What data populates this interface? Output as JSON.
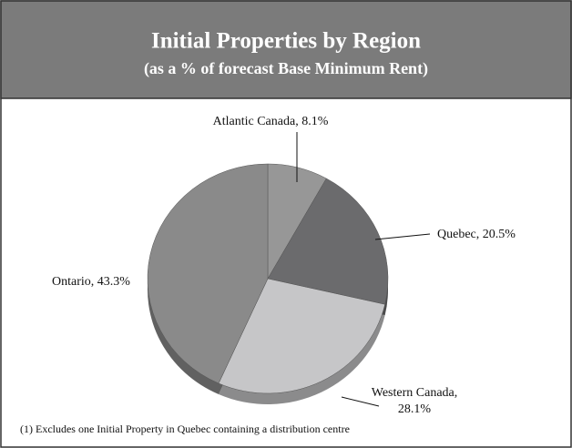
{
  "chart_data": {
    "type": "pie",
    "title": "Initial Properties by Region",
    "subtitle": "(as a % of forecast Base Minimum Rent)",
    "categories": [
      "Atlantic Canada",
      "Quebec",
      "Western Canada",
      "Ontario"
    ],
    "values": [
      8.1,
      20.5,
      28.1,
      43.3
    ],
    "value_labels": [
      "Atlantic Canada, 8.1%",
      "Quebec, 20.5%",
      "Western Canada, 28.1%",
      "Ontario, 43.3%"
    ],
    "colors": [
      "#979797",
      "#6b6b6d",
      "#c6c6c8",
      "#8a8a8a"
    ],
    "footnote": "(1) Excludes one Initial Property in Quebec containing a distribution centre"
  }
}
